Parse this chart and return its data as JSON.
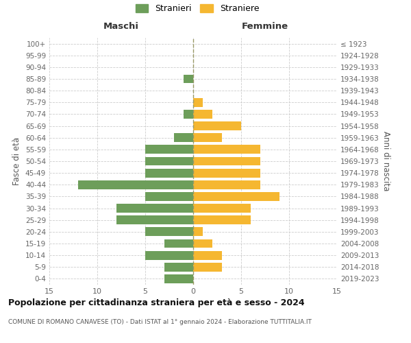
{
  "age_groups": [
    "0-4",
    "5-9",
    "10-14",
    "15-19",
    "20-24",
    "25-29",
    "30-34",
    "35-39",
    "40-44",
    "45-49",
    "50-54",
    "55-59",
    "60-64",
    "65-69",
    "70-74",
    "75-79",
    "80-84",
    "85-89",
    "90-94",
    "95-99",
    "100+"
  ],
  "birth_years": [
    "2019-2023",
    "2014-2018",
    "2009-2013",
    "2004-2008",
    "1999-2003",
    "1994-1998",
    "1989-1993",
    "1984-1988",
    "1979-1983",
    "1974-1978",
    "1969-1973",
    "1964-1968",
    "1959-1963",
    "1954-1958",
    "1949-1953",
    "1944-1948",
    "1939-1943",
    "1934-1938",
    "1929-1933",
    "1924-1928",
    "≤ 1923"
  ],
  "males": [
    3,
    3,
    5,
    3,
    5,
    8,
    8,
    5,
    12,
    5,
    5,
    5,
    2,
    0,
    1,
    0,
    0,
    1,
    0,
    0,
    0
  ],
  "females": [
    0,
    3,
    3,
    2,
    1,
    6,
    6,
    9,
    7,
    7,
    7,
    7,
    3,
    5,
    2,
    1,
    0,
    0,
    0,
    0,
    0
  ],
  "male_color": "#6d9e5a",
  "female_color": "#f5b731",
  "background_color": "#ffffff",
  "grid_color": "#cccccc",
  "title": "Popolazione per cittadinanza straniera per età e sesso - 2024",
  "subtitle": "COMUNE DI ROMANO CANAVESE (TO) - Dati ISTAT al 1° gennaio 2024 - Elaborazione TUTTITALIA.IT",
  "left_header": "Maschi",
  "right_header": "Femmine",
  "y_left_label": "Fasce di età",
  "y_right_label": "Anni di nascita",
  "xlim": 15,
  "xticks": [
    -15,
    -10,
    -5,
    0,
    5,
    10,
    15
  ],
  "xtick_labels": [
    "15",
    "10",
    "5",
    "0",
    "5",
    "10",
    "15"
  ],
  "legend_males": "Stranieri",
  "legend_females": "Straniere"
}
